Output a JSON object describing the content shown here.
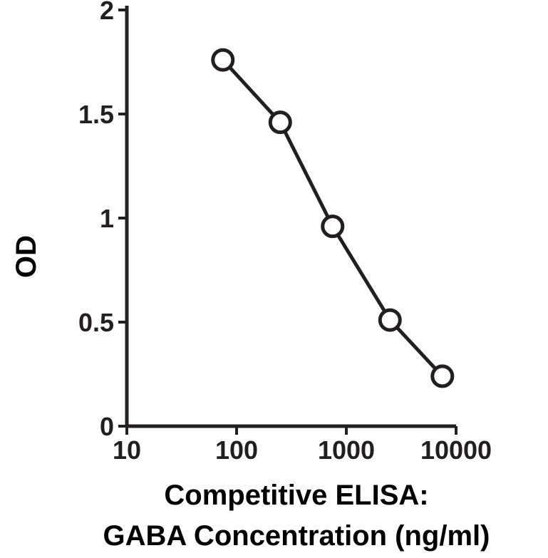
{
  "chart_data": {
    "type": "line",
    "xscale": "log",
    "xlim": [
      10,
      10000
    ],
    "ylim": [
      0,
      2
    ],
    "xticks": [
      10,
      100,
      1000,
      10000
    ],
    "yticks": [
      0,
      0.5,
      1,
      1.5,
      2
    ],
    "xtick_labels": [
      "10",
      "100",
      "1000",
      "10000"
    ],
    "ytick_labels": [
      "0",
      "0.5",
      "1",
      "1.5",
      "2"
    ],
    "ylabel": "OD",
    "xlabel_line1": "Competitive ELISA:",
    "xlabel_line2": "GABA Concentration (ng/ml)",
    "grid": false,
    "marker": "open-circle",
    "color": "#231f20",
    "series": [
      {
        "x": [
          75,
          250,
          750,
          2500,
          7500
        ],
        "y": [
          1.76,
          1.46,
          0.96,
          0.51,
          0.24
        ]
      }
    ]
  }
}
